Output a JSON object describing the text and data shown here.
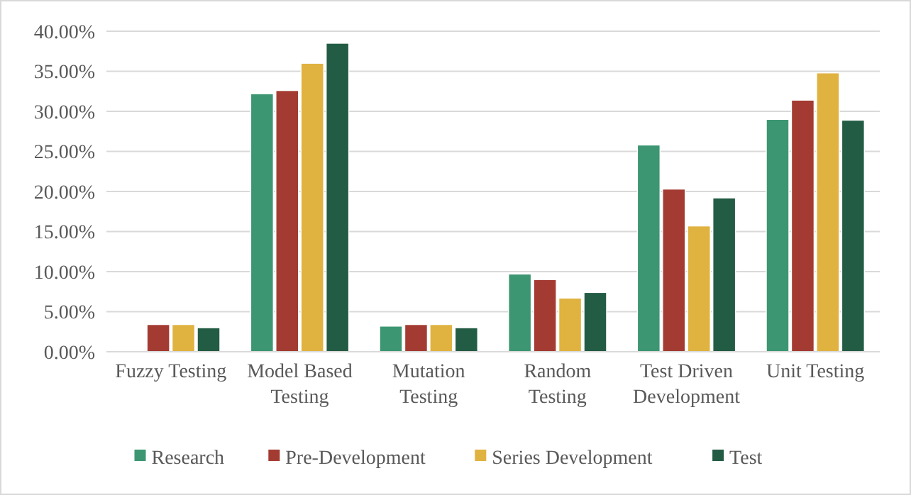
{
  "chart_data": {
    "type": "bar",
    "categories": [
      "Fuzzy Testing",
      "Model Based Testing",
      "Mutation Testing",
      "Random Testing",
      "Test Driven Development",
      "Unit Testing"
    ],
    "series": [
      {
        "name": "Research",
        "color": "#3c9672",
        "values": [
          0,
          32.2,
          3.2,
          9.7,
          25.8,
          29.0
        ]
      },
      {
        "name": "Pre-Development",
        "color": "#a33b32",
        "values": [
          3.4,
          32.6,
          3.4,
          9.0,
          20.3,
          31.4
        ]
      },
      {
        "name": "Series Development",
        "color": "#e0b240",
        "values": [
          3.4,
          36.0,
          3.4,
          6.7,
          15.7,
          34.8
        ]
      },
      {
        "name": "Test",
        "color": "#235c44",
        "values": [
          3.0,
          38.5,
          3.0,
          7.4,
          19.2,
          28.9
        ]
      }
    ],
    "ylim": [
      0,
      40
    ],
    "yticks": [
      {
        "value": 0,
        "label": "0.00%"
      },
      {
        "value": 5,
        "label": "5.00%"
      },
      {
        "value": 10,
        "label": "10.00%"
      },
      {
        "value": 15,
        "label": "15.00%"
      },
      {
        "value": 20,
        "label": "20.00%"
      },
      {
        "value": 25,
        "label": "25.00%"
      },
      {
        "value": 30,
        "label": "30.00%"
      },
      {
        "value": 35,
        "label": "35.00%"
      },
      {
        "value": 40,
        "label": "40.00%"
      }
    ],
    "grid": "y",
    "legend": "bottom"
  }
}
